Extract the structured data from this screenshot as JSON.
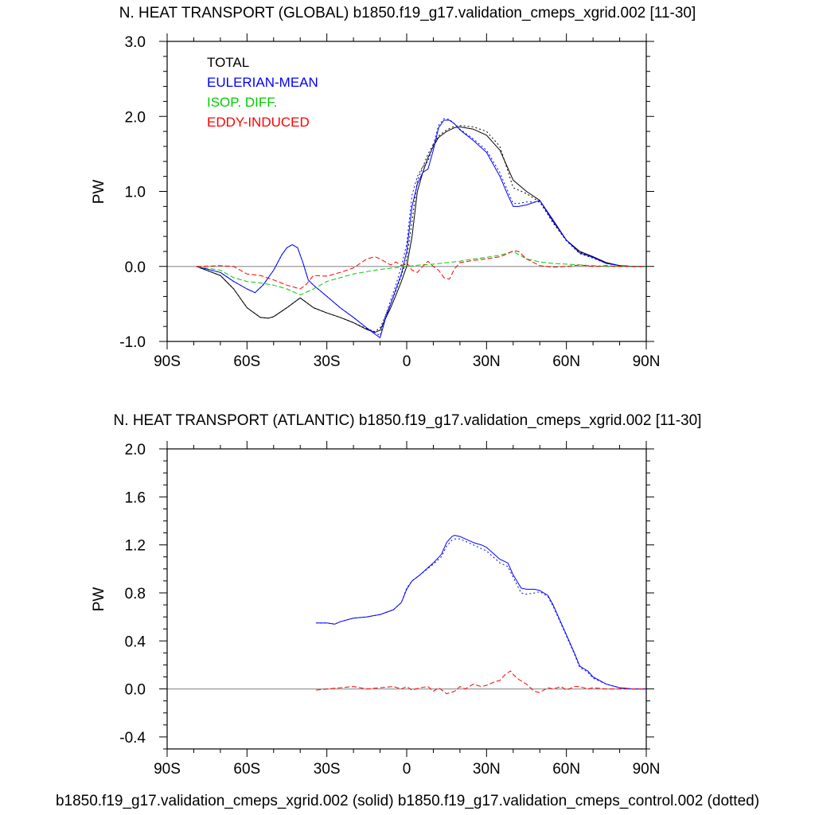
{
  "footer": "b1850.f19_g17.validation_cmeps_xgrid.002 (solid) b1850.f19_g17.validation_cmeps_control.002 (dotted)",
  "colors": {
    "total": "#000000",
    "eulerian": "#0000ff",
    "isop": "#00cc00",
    "eddy": "#ff0000",
    "zero_line": "#999999"
  },
  "chart_data": [
    {
      "type": "line",
      "title": "N. HEAT TRANSPORT (GLOBAL) b1850.f19_g17.validation_cmeps_xgrid.002 [11-30]",
      "xlabel": "",
      "ylabel": "PW",
      "xlim": [
        -90,
        90
      ],
      "ylim": [
        -1.0,
        3.0
      ],
      "xticks": [
        -90,
        -60,
        -30,
        0,
        30,
        60,
        90
      ],
      "xtick_labels": [
        "90S",
        "60S",
        "30S",
        "0",
        "30N",
        "60N",
        "90N"
      ],
      "yticks": [
        -1.0,
        0.0,
        1.0,
        2.0,
        3.0
      ],
      "ytick_labels": [
        "-1.0",
        "0.0",
        "1.0",
        "2.0",
        "3.0"
      ],
      "legend": [
        "TOTAL",
        "EULERIAN-MEAN",
        "ISOP. DIFF.",
        "EDDY-INDUCED"
      ],
      "series": [
        {
          "name": "TOTAL",
          "color_key": "total",
          "style": "solid",
          "x": [
            -79,
            -70,
            -65,
            -60,
            -55,
            -52,
            -50,
            -45,
            -40,
            -35,
            -30,
            -25,
            -20,
            -15,
            -12,
            -10,
            -8,
            -6,
            -4,
            -2,
            0,
            2,
            4,
            6,
            8,
            10,
            12,
            15,
            18,
            20,
            25,
            30,
            35,
            40,
            45,
            50,
            55,
            60,
            65,
            70,
            75,
            80,
            85,
            90
          ],
          "y": [
            0.0,
            -0.12,
            -0.3,
            -0.55,
            -0.68,
            -0.69,
            -0.67,
            -0.55,
            -0.42,
            -0.55,
            -0.62,
            -0.68,
            -0.75,
            -0.84,
            -0.88,
            -0.85,
            -0.7,
            -0.55,
            -0.38,
            -0.2,
            0.0,
            0.4,
            1.0,
            1.25,
            1.45,
            1.6,
            1.72,
            1.8,
            1.85,
            1.86,
            1.83,
            1.75,
            1.55,
            1.15,
            1.0,
            0.88,
            0.6,
            0.35,
            0.2,
            0.13,
            0.05,
            0.01,
            0.0,
            0.0
          ]
        },
        {
          "name": "TOTAL",
          "color_key": "total",
          "style": "dotted",
          "x": [
            -79,
            -70,
            -65,
            -60,
            -55,
            -52,
            -50,
            -45,
            -40,
            -35,
            -30,
            -25,
            -20,
            -15,
            -12,
            -10,
            -8,
            -6,
            -4,
            -2,
            0,
            2,
            4,
            6,
            8,
            10,
            12,
            15,
            18,
            20,
            25,
            30,
            35,
            40,
            45,
            50,
            55,
            60,
            65,
            70,
            75,
            80,
            85,
            90
          ],
          "y": [
            0.0,
            -0.12,
            -0.3,
            -0.55,
            -0.68,
            -0.69,
            -0.67,
            -0.55,
            -0.42,
            -0.55,
            -0.62,
            -0.68,
            -0.75,
            -0.83,
            -0.87,
            -0.82,
            -0.66,
            -0.5,
            -0.32,
            -0.12,
            0.1,
            0.6,
            1.15,
            1.32,
            1.5,
            1.63,
            1.74,
            1.82,
            1.87,
            1.88,
            1.86,
            1.8,
            1.6,
            1.05,
            0.97,
            0.86,
            0.58,
            0.34,
            0.19,
            0.12,
            0.05,
            0.01,
            0.0,
            0.0
          ]
        },
        {
          "name": "EULERIAN-MEAN",
          "color_key": "eulerian",
          "style": "solid",
          "x": [
            -79,
            -70,
            -65,
            -60,
            -57,
            -54,
            -50,
            -47,
            -45,
            -43,
            -41,
            -39,
            -37,
            -35,
            -30,
            -25,
            -20,
            -15,
            -12,
            -10,
            -8,
            -6,
            -4,
            -2,
            0,
            2,
            4,
            6,
            8,
            10,
            12,
            14,
            16,
            18,
            20,
            25,
            30,
            35,
            38,
            40,
            42,
            45,
            50,
            55,
            60,
            65,
            70,
            75,
            80,
            85,
            90
          ],
          "y": [
            0.0,
            -0.08,
            -0.2,
            -0.3,
            -0.35,
            -0.25,
            -0.05,
            0.15,
            0.25,
            0.29,
            0.25,
            0.05,
            -0.18,
            -0.25,
            -0.4,
            -0.55,
            -0.68,
            -0.82,
            -0.9,
            -0.95,
            -0.7,
            -0.5,
            -0.3,
            -0.1,
            0.2,
            0.8,
            1.1,
            1.25,
            1.3,
            1.55,
            1.85,
            1.95,
            1.95,
            1.9,
            1.82,
            1.68,
            1.52,
            1.2,
            0.95,
            0.8,
            0.8,
            0.82,
            0.88,
            0.62,
            0.35,
            0.18,
            0.12,
            0.04,
            0.01,
            0.0,
            0.0
          ]
        },
        {
          "name": "EULERIAN-MEAN",
          "color_key": "eulerian",
          "style": "dotted",
          "x": [
            -79,
            -70,
            -65,
            -60,
            -57,
            -54,
            -50,
            -47,
            -45,
            -43,
            -41,
            -39,
            -37,
            -35,
            -30,
            -25,
            -20,
            -15,
            -12,
            -10,
            -8,
            -6,
            -4,
            -2,
            0,
            2,
            4,
            6,
            8,
            10,
            12,
            14,
            16,
            18,
            20,
            25,
            30,
            35,
            38,
            40,
            42,
            45,
            50,
            55,
            60,
            65,
            70,
            75,
            80,
            85,
            90
          ],
          "y": [
            0.0,
            -0.08,
            -0.2,
            -0.3,
            -0.35,
            -0.25,
            -0.05,
            0.15,
            0.25,
            0.29,
            0.25,
            0.05,
            -0.18,
            -0.25,
            -0.4,
            -0.55,
            -0.68,
            -0.82,
            -0.88,
            -0.92,
            -0.66,
            -0.45,
            -0.24,
            0.0,
            0.3,
            0.95,
            1.2,
            1.33,
            1.4,
            1.62,
            1.88,
            1.97,
            1.96,
            1.9,
            1.83,
            1.7,
            1.55,
            1.25,
            1.0,
            0.84,
            0.84,
            0.86,
            0.86,
            0.6,
            0.34,
            0.17,
            0.11,
            0.04,
            0.01,
            0.0,
            0.0
          ]
        },
        {
          "name": "ISOP. DIFF.",
          "color_key": "isop",
          "style": "dashed",
          "x": [
            -79,
            -70,
            -65,
            -60,
            -55,
            -50,
            -45,
            -40,
            -35,
            -30,
            -25,
            -20,
            -15,
            -10,
            -5,
            0,
            5,
            10,
            15,
            20,
            25,
            30,
            35,
            38,
            40,
            42,
            45,
            50,
            55,
            60,
            65,
            70,
            75,
            80,
            85,
            90
          ],
          "y": [
            0.0,
            -0.05,
            -0.15,
            -0.2,
            -0.22,
            -0.25,
            -0.3,
            -0.38,
            -0.3,
            -0.2,
            -0.15,
            -0.1,
            -0.07,
            -0.04,
            -0.02,
            0.0,
            0.02,
            0.03,
            0.05,
            0.07,
            0.1,
            0.12,
            0.15,
            0.18,
            0.2,
            0.16,
            0.1,
            0.06,
            0.04,
            0.03,
            0.02,
            0.01,
            0.0,
            0.0,
            0.0,
            0.0
          ]
        },
        {
          "name": "EDDY-INDUCED",
          "color_key": "eddy",
          "style": "dashed",
          "x": [
            -79,
            -70,
            -65,
            -60,
            -55,
            -50,
            -45,
            -40,
            -38,
            -35,
            -30,
            -25,
            -20,
            -15,
            -12,
            -10,
            -8,
            -6,
            -4,
            -2,
            0,
            2,
            4,
            6,
            8,
            10,
            12,
            14,
            16,
            18,
            20,
            25,
            30,
            35,
            38,
            40,
            42,
            45,
            50,
            55,
            60,
            65,
            70,
            75,
            80,
            85,
            90
          ],
          "y": [
            0.0,
            0.01,
            0.0,
            -0.1,
            -0.12,
            -0.18,
            -0.25,
            -0.3,
            -0.25,
            -0.12,
            -0.13,
            -0.08,
            -0.02,
            0.1,
            0.13,
            0.1,
            0.06,
            0.02,
            0.06,
            0.01,
            0.05,
            -0.05,
            -0.08,
            0.0,
            0.07,
            0.0,
            -0.05,
            -0.15,
            -0.17,
            -0.03,
            0.05,
            0.08,
            0.1,
            0.13,
            0.17,
            0.21,
            0.2,
            0.1,
            0.01,
            -0.01,
            0.0,
            0.02,
            0.0,
            0.01,
            0.0,
            0.0,
            0.0
          ]
        }
      ]
    },
    {
      "type": "line",
      "title": "N. HEAT TRANSPORT (ATLANTIC) b1850.f19_g17.validation_cmeps_xgrid.002 [11-30]",
      "xlabel": "",
      "ylabel": "PW",
      "xlim": [
        -90,
        90
      ],
      "ylim": [
        -0.5,
        2.0
      ],
      "xticks": [
        -90,
        -60,
        -30,
        0,
        30,
        60,
        90
      ],
      "xtick_labels": [
        "90S",
        "60S",
        "30S",
        "0",
        "30N",
        "60N",
        "90N"
      ],
      "yticks": [
        -0.4,
        0.0,
        0.4,
        0.8,
        1.2,
        1.6,
        2.0
      ],
      "ytick_labels": [
        "-0.4",
        "0.0",
        "0.4",
        "0.8",
        "1.2",
        "1.6",
        "2.0"
      ],
      "series": [
        {
          "name": "EULERIAN-MEAN",
          "color_key": "eulerian",
          "style": "solid",
          "x": [
            -34,
            -30,
            -27,
            -25,
            -20,
            -15,
            -10,
            -5,
            -2,
            0,
            2,
            5,
            10,
            13,
            15,
            17,
            18,
            20,
            22,
            25,
            28,
            30,
            33,
            35,
            38,
            40,
            43,
            45,
            48,
            50,
            53,
            55,
            58,
            60,
            63,
            65,
            68,
            70,
            75,
            80,
            85,
            90
          ],
          "y": [
            0.55,
            0.55,
            0.54,
            0.56,
            0.59,
            0.6,
            0.62,
            0.66,
            0.72,
            0.83,
            0.9,
            0.95,
            1.05,
            1.12,
            1.22,
            1.27,
            1.28,
            1.27,
            1.25,
            1.22,
            1.2,
            1.18,
            1.12,
            1.08,
            1.05,
            0.95,
            0.84,
            0.83,
            0.83,
            0.82,
            0.78,
            0.7,
            0.55,
            0.45,
            0.3,
            0.19,
            0.15,
            0.1,
            0.04,
            0.01,
            0.0,
            0.0
          ]
        },
        {
          "name": "EULERIAN-MEAN",
          "color_key": "eulerian",
          "style": "dotted",
          "x": [
            -34,
            -30,
            -27,
            -25,
            -20,
            -15,
            -10,
            -5,
            -2,
            0,
            2,
            5,
            10,
            13,
            15,
            17,
            18,
            20,
            22,
            25,
            28,
            30,
            33,
            35,
            38,
            40,
            43,
            45,
            48,
            50,
            53,
            55,
            58,
            60,
            63,
            65,
            68,
            70,
            75,
            80,
            85,
            90
          ],
          "y": [
            0.55,
            0.55,
            0.54,
            0.56,
            0.59,
            0.6,
            0.62,
            0.66,
            0.72,
            0.84,
            0.9,
            0.95,
            1.04,
            1.1,
            1.19,
            1.24,
            1.25,
            1.25,
            1.23,
            1.2,
            1.17,
            1.15,
            1.09,
            1.05,
            1.02,
            0.93,
            0.8,
            0.79,
            0.8,
            0.81,
            0.77,
            0.69,
            0.54,
            0.44,
            0.29,
            0.18,
            0.14,
            0.09,
            0.04,
            0.01,
            0.0,
            0.0
          ]
        },
        {
          "name": "EDDY-INDUCED",
          "color_key": "eddy",
          "style": "dashed",
          "x": [
            -34,
            -30,
            -25,
            -20,
            -15,
            -10,
            -5,
            -2,
            0,
            2,
            5,
            8,
            10,
            12,
            15,
            18,
            20,
            22,
            25,
            28,
            30,
            33,
            35,
            37,
            39,
            40,
            42,
            45,
            48,
            50,
            53,
            55,
            58,
            60,
            63,
            65,
            68,
            70,
            75,
            80,
            85,
            90
          ],
          "y": [
            -0.01,
            0.0,
            0.01,
            0.02,
            0.0,
            0.01,
            0.02,
            0.0,
            0.02,
            -0.01,
            0.01,
            0.02,
            -0.02,
            0.01,
            -0.04,
            -0.02,
            0.02,
            0.0,
            0.04,
            0.02,
            0.03,
            0.06,
            0.07,
            0.12,
            0.15,
            0.12,
            0.08,
            0.04,
            -0.02,
            -0.03,
            0.01,
            0.0,
            0.02,
            -0.01,
            0.02,
            0.02,
            0.0,
            0.01,
            0.0,
            0.0,
            0.0,
            0.0
          ]
        }
      ]
    }
  ]
}
